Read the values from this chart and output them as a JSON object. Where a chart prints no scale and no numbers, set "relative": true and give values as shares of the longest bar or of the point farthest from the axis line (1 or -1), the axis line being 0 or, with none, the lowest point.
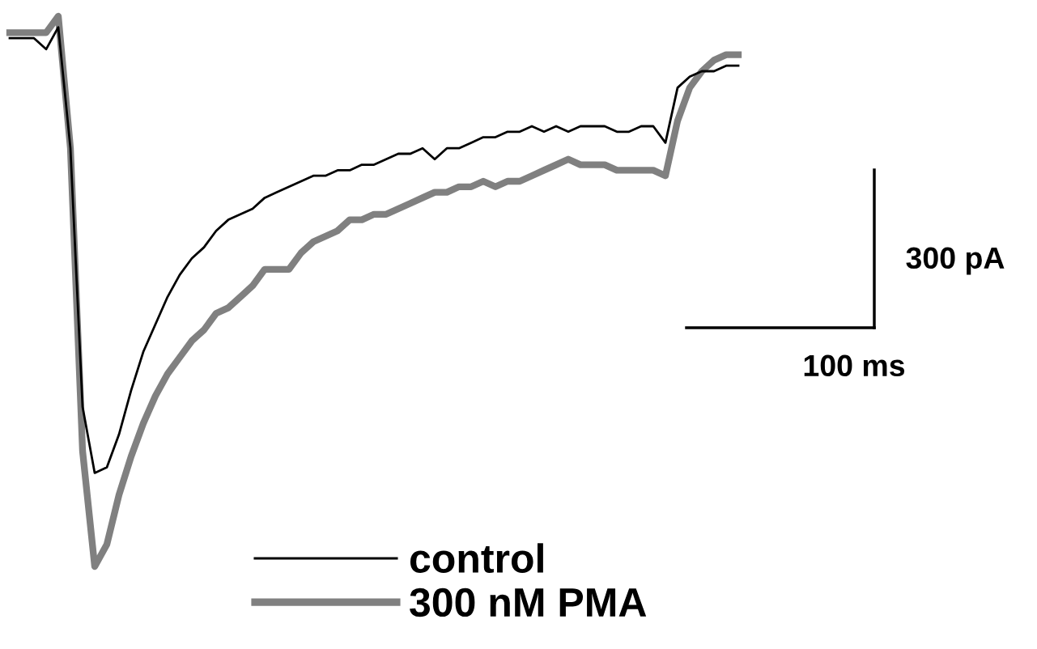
{
  "chart_data": {
    "type": "line",
    "relative": true,
    "legend": "bottom",
    "marker": "none",
    "line_style": "solid",
    "categories": [
      null,
      null,
      null,
      null,
      null,
      null,
      null,
      null,
      null,
      null,
      null,
      null,
      null,
      null,
      null,
      null,
      null,
      null,
      null,
      null,
      null,
      null,
      null,
      null,
      null,
      null,
      null,
      null,
      null,
      null,
      null,
      null,
      null,
      null,
      null,
      null,
      null,
      null,
      null,
      null,
      null,
      null,
      null,
      null,
      null,
      null,
      null,
      null,
      null,
      null,
      null,
      null,
      null,
      null,
      null,
      null,
      null,
      null,
      null,
      null,
      null
    ],
    "series": [
      {
        "name": "control",
        "color": "#000000",
        "values": [
          0.96,
          0.96,
          0.96,
          0.94,
          0.98,
          0.76,
          0.29,
          0.17,
          0.18,
          0.24,
          0.32,
          0.39,
          0.44,
          0.49,
          0.53,
          0.56,
          0.58,
          0.61,
          0.63,
          0.64,
          0.65,
          0.67,
          0.68,
          0.69,
          0.7,
          0.71,
          0.71,
          0.72,
          0.72,
          0.73,
          0.73,
          0.74,
          0.75,
          0.75,
          0.76,
          0.74,
          0.76,
          0.76,
          0.77,
          0.78,
          0.78,
          0.79,
          0.79,
          0.8,
          0.79,
          0.8,
          0.79,
          0.8,
          0.8,
          0.8,
          0.79,
          0.79,
          0.8,
          0.8,
          0.77,
          0.87,
          0.89,
          0.9,
          0.9,
          0.91,
          0.91
        ]
      },
      {
        "name": "300 nM PMA",
        "color": "#808080",
        "values": [
          0.97,
          0.97,
          0.97,
          0.97,
          1.0,
          0.76,
          0.21,
          0.0,
          0.04,
          0.13,
          0.2,
          0.26,
          0.31,
          0.35,
          0.38,
          0.41,
          0.43,
          0.46,
          0.47,
          0.49,
          0.51,
          0.54,
          0.54,
          0.54,
          0.57,
          0.59,
          0.6,
          0.61,
          0.63,
          0.63,
          0.64,
          0.64,
          0.65,
          0.66,
          0.67,
          0.68,
          0.68,
          0.69,
          0.69,
          0.7,
          0.69,
          0.7,
          0.7,
          0.71,
          0.72,
          0.73,
          0.74,
          0.73,
          0.73,
          0.73,
          0.72,
          0.72,
          0.72,
          0.72,
          0.71,
          0.81,
          0.87,
          0.9,
          0.92,
          0.93,
          0.93
        ]
      }
    ],
    "annotations": [
      "300 pA",
      "100 ms"
    ]
  }
}
